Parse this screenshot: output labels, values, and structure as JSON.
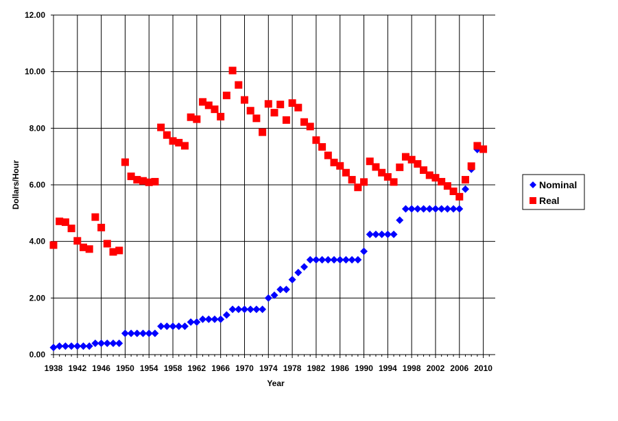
{
  "chart_data": {
    "type": "scatter",
    "xlabel": "Year",
    "ylabel": "Dollars/Hour",
    "xlim": [
      1938,
      2012
    ],
    "ylim": [
      0,
      12
    ],
    "y_ticks": [
      "0.00",
      "2.00",
      "4.00",
      "6.00",
      "8.00",
      "10.00",
      "12.00"
    ],
    "x_ticks": [
      "1938",
      "1942",
      "1946",
      "1950",
      "1954",
      "1958",
      "1962",
      "1966",
      "1970",
      "1974",
      "1978",
      "1982",
      "1986",
      "1990",
      "1994",
      "1998",
      "2002",
      "2006",
      "2010"
    ],
    "grid": true,
    "legend_position": "right",
    "series": [
      {
        "name": "Nominal",
        "color": "#0000FF",
        "marker": "diamond",
        "x": [
          1938,
          1939,
          1940,
          1941,
          1942,
          1943,
          1944,
          1945,
          1946,
          1947,
          1948,
          1949,
          1950,
          1951,
          1952,
          1953,
          1954,
          1955,
          1956,
          1957,
          1958,
          1959,
          1960,
          1961,
          1962,
          1963,
          1964,
          1965,
          1966,
          1967,
          1968,
          1969,
          1970,
          1971,
          1972,
          1973,
          1974,
          1975,
          1976,
          1977,
          1978,
          1979,
          1980,
          1981,
          1982,
          1983,
          1984,
          1985,
          1986,
          1987,
          1988,
          1989,
          1990,
          1991,
          1992,
          1993,
          1994,
          1995,
          1996,
          1997,
          1998,
          1999,
          2000,
          2001,
          2002,
          2003,
          2004,
          2005,
          2006,
          2007,
          2008,
          2009,
          2010
        ],
        "values": [
          0.25,
          0.3,
          0.3,
          0.3,
          0.3,
          0.3,
          0.3,
          0.4,
          0.4,
          0.4,
          0.4,
          0.4,
          0.75,
          0.75,
          0.75,
          0.75,
          0.75,
          0.75,
          1.0,
          1.0,
          1.0,
          1.0,
          1.0,
          1.15,
          1.15,
          1.25,
          1.25,
          1.25,
          1.25,
          1.4,
          1.6,
          1.6,
          1.6,
          1.6,
          1.6,
          1.6,
          2.0,
          2.1,
          2.3,
          2.3,
          2.65,
          2.9,
          3.1,
          3.35,
          3.35,
          3.35,
          3.35,
          3.35,
          3.35,
          3.35,
          3.35,
          3.35,
          3.65,
          4.25,
          4.25,
          4.25,
          4.25,
          4.25,
          4.75,
          5.15,
          5.15,
          5.15,
          5.15,
          5.15,
          5.15,
          5.15,
          5.15,
          5.15,
          5.15,
          5.85,
          6.55,
          7.25,
          7.25
        ]
      },
      {
        "name": "Real",
        "color": "#FF0000",
        "marker": "square",
        "x": [
          1938,
          1939,
          1940,
          1941,
          1942,
          1943,
          1944,
          1945,
          1946,
          1947,
          1948,
          1949,
          1950,
          1951,
          1952,
          1953,
          1954,
          1955,
          1956,
          1957,
          1958,
          1959,
          1960,
          1961,
          1962,
          1963,
          1964,
          1965,
          1966,
          1967,
          1968,
          1969,
          1970,
          1971,
          1972,
          1973,
          1974,
          1975,
          1976,
          1977,
          1978,
          1979,
          1980,
          1981,
          1982,
          1983,
          1984,
          1985,
          1986,
          1987,
          1988,
          1989,
          1990,
          1991,
          1992,
          1993,
          1994,
          1995,
          1996,
          1997,
          1998,
          1999,
          2000,
          2001,
          2002,
          2003,
          2004,
          2005,
          2006,
          2007,
          2008,
          2009,
          2010
        ],
        "values": [
          3.87,
          4.71,
          4.68,
          4.46,
          4.02,
          3.79,
          3.73,
          4.86,
          4.49,
          3.92,
          3.63,
          3.68,
          6.8,
          6.3,
          6.18,
          6.14,
          6.09,
          6.11,
          8.03,
          7.76,
          7.55,
          7.49,
          7.38,
          8.39,
          8.32,
          8.93,
          8.81,
          8.67,
          8.41,
          9.16,
          10.04,
          9.53,
          9.0,
          8.62,
          8.35,
          7.86,
          8.86,
          8.55,
          8.84,
          8.29,
          8.89,
          8.73,
          8.22,
          8.06,
          7.58,
          7.34,
          7.04,
          6.79,
          6.67,
          6.43,
          6.18,
          5.91,
          6.1,
          6.83,
          6.63,
          6.43,
          6.28,
          6.1,
          6.62,
          6.99,
          6.89,
          6.74,
          6.52,
          6.34,
          6.25,
          6.11,
          5.96,
          5.77,
          5.58,
          6.18,
          6.66,
          7.38,
          7.26
        ]
      }
    ]
  }
}
